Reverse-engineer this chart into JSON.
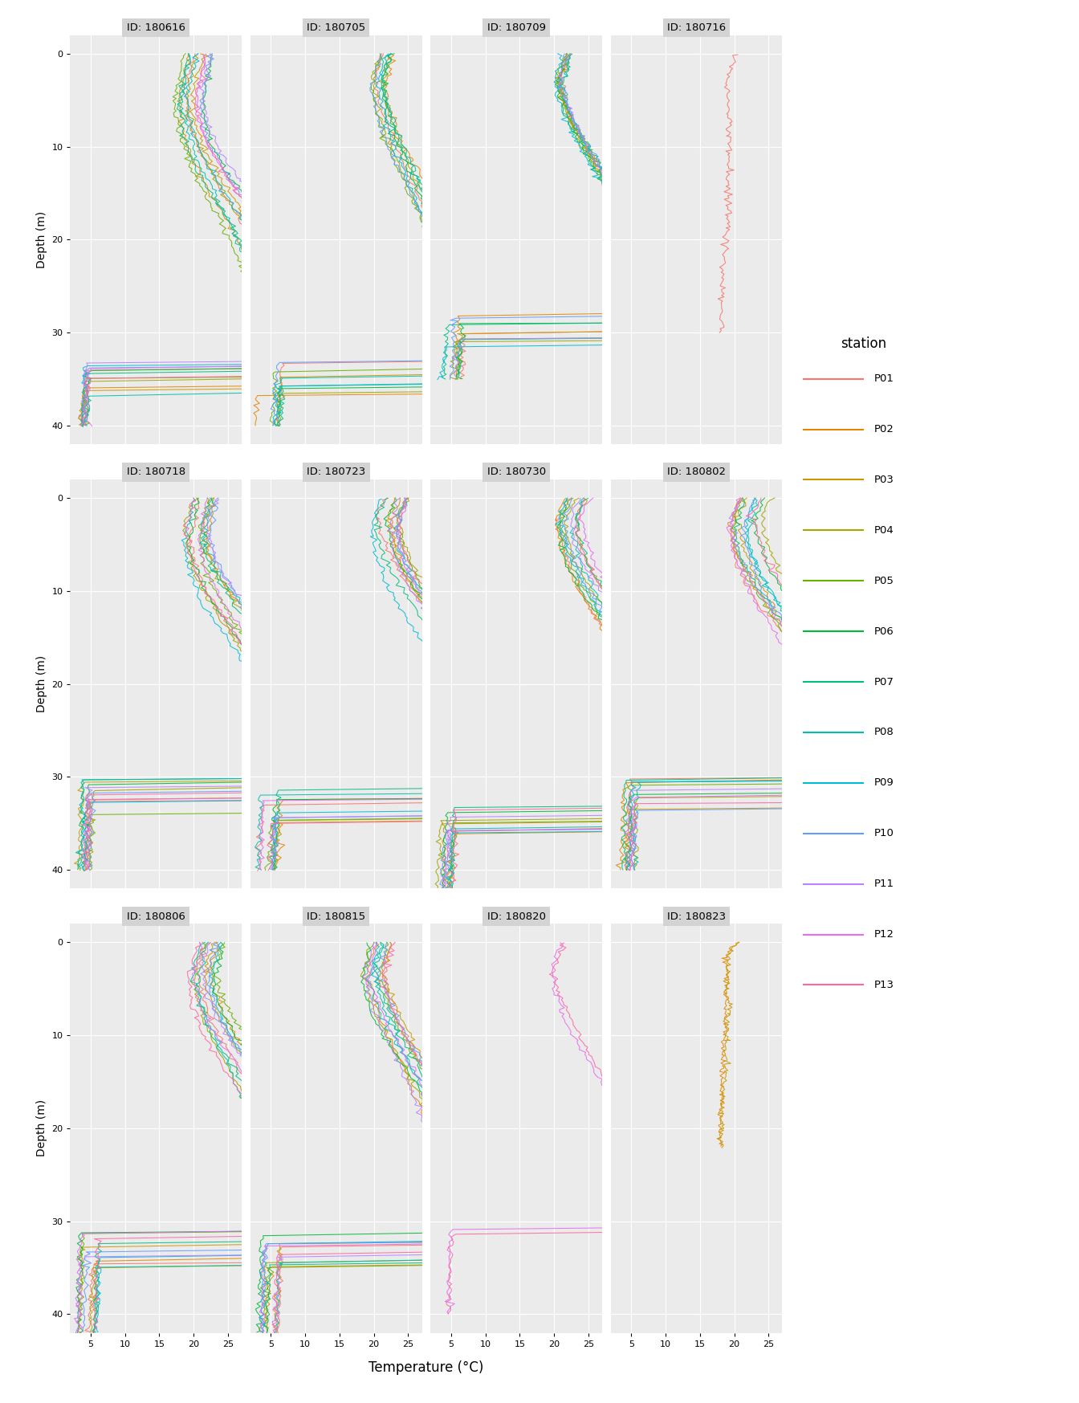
{
  "cruises": [
    "180616",
    "180705",
    "180709",
    "180716",
    "180718",
    "180723",
    "180730",
    "180802",
    "180806",
    "180815",
    "180820",
    "180823"
  ],
  "stations": [
    "P01",
    "P02",
    "P03",
    "P04",
    "P05",
    "P06",
    "P07",
    "P08",
    "P09",
    "P10",
    "P11",
    "P12",
    "P13"
  ],
  "station_colors": {
    "P01": "#F8766D",
    "P02": "#E58700",
    "P03": "#C99800",
    "P04": "#A3A500",
    "P05": "#6BB100",
    "P06": "#00BA38",
    "P07": "#00BF7D",
    "P08": "#00C0AF",
    "P09": "#00BCD8",
    "P10": "#619CFF",
    "P11": "#B983FF",
    "P12": "#E76BF3",
    "P13": "#FF67A4"
  },
  "cruise_stations": {
    "180616": [
      "P01",
      "P02",
      "P03",
      "P04",
      "P05",
      "P06",
      "P07",
      "P08",
      "P09",
      "P10",
      "P11",
      "P12",
      "P13"
    ],
    "180705": [
      "P01",
      "P02",
      "P03",
      "P04",
      "P05",
      "P06",
      "P07",
      "P08",
      "P09",
      "P10"
    ],
    "180709": [
      "P01",
      "P02",
      "P03",
      "P04",
      "P05",
      "P06",
      "P07",
      "P08",
      "P09",
      "P10",
      "P11"
    ],
    "180716": [
      "P01"
    ],
    "180718": [
      "P01",
      "P02",
      "P03",
      "P04",
      "P05",
      "P06",
      "P07",
      "P08",
      "P09",
      "P10",
      "P11",
      "P12",
      "P13"
    ],
    "180723": [
      "P01",
      "P02",
      "P03",
      "P04",
      "P05",
      "P06",
      "P07",
      "P08",
      "P09",
      "P10",
      "P11",
      "P12",
      "P13"
    ],
    "180730": [
      "P01",
      "P02",
      "P03",
      "P04",
      "P05",
      "P06",
      "P07",
      "P08",
      "P09",
      "P10",
      "P11",
      "P12",
      "P13"
    ],
    "180802": [
      "P01",
      "P02",
      "P03",
      "P04",
      "P05",
      "P06",
      "P07",
      "P08",
      "P09",
      "P10",
      "P11",
      "P12",
      "P13"
    ],
    "180806": [
      "P01",
      "P02",
      "P03",
      "P04",
      "P05",
      "P06",
      "P07",
      "P08",
      "P09",
      "P10",
      "P11",
      "P12",
      "P13"
    ],
    "180815": [
      "P01",
      "P02",
      "P03",
      "P04",
      "P05",
      "P06",
      "P07",
      "P08",
      "P09",
      "P10",
      "P11",
      "P12",
      "P13"
    ],
    "180820": [
      "P12",
      "P13"
    ],
    "180823": [
      "P02",
      "P03"
    ]
  },
  "xlim": [
    2,
    27
  ],
  "ylim": [
    42,
    -2
  ],
  "xticks": [
    5,
    10,
    15,
    20,
    25
  ],
  "yticks": [
    0,
    10,
    20,
    30,
    40
  ],
  "xlabel": "Temperature (°C)",
  "ylabel": "Depth (m)",
  "panel_bg": "#EBEBEB",
  "grid_color": "white",
  "title_bg": "#D3D3D3"
}
